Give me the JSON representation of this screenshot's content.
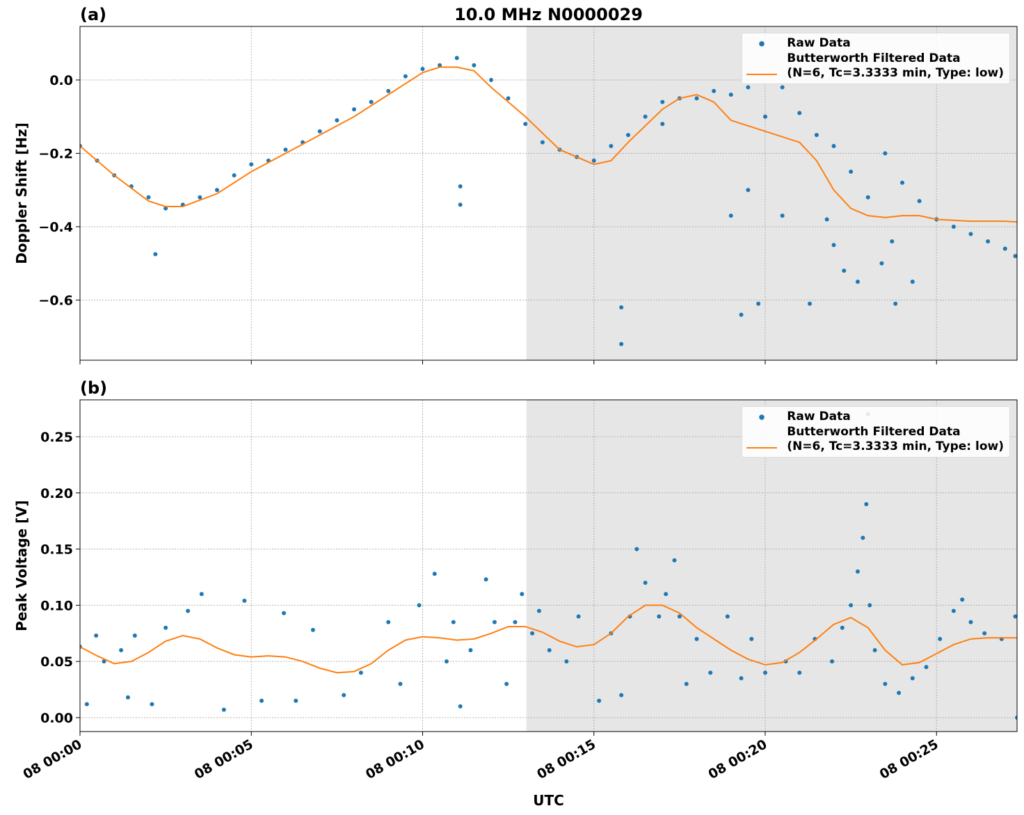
{
  "chart_data": [
    {
      "type": "scatter-line",
      "title": "10.0 MHz N0000029",
      "panel_label": "(a)",
      "ylabel": "Doppler Shift [Hz]",
      "sharex": true,
      "xlim": [
        0,
        27.35
      ],
      "ylim": [
        -0.764,
        0.146
      ],
      "grid": true,
      "shade": [
        13.03,
        27.35
      ],
      "legend": "upper right",
      "yticks": [
        {
          "value": -0.6,
          "label": "−0.6"
        },
        {
          "value": -0.4,
          "label": "−0.4"
        },
        {
          "value": -0.2,
          "label": "−0.2"
        },
        {
          "value": 0,
          "label": "0.0"
        }
      ],
      "series": [
        {
          "name": "Raw Data",
          "color": "#1f77b4",
          "mode": "markers",
          "x": [
            0,
            0.5,
            1,
            1.5,
            2,
            2.5,
            3,
            3.5,
            4,
            4.5,
            5,
            5.5,
            6,
            6.5,
            7,
            7.5,
            8,
            8.5,
            9,
            9.5,
            10,
            10.5,
            11,
            11.5,
            12,
            12.5,
            13,
            13.5,
            14,
            14.5,
            15,
            15.5,
            16,
            16.5,
            17,
            17.5,
            18,
            18.5,
            19,
            19.5,
            20,
            20.5,
            21,
            21.5,
            22,
            22.5,
            23,
            23.5,
            24,
            24.5,
            25,
            25.5,
            26,
            26.5,
            27,
            27.3,
            2.2,
            11.1,
            11.1,
            15.8,
            15.8,
            19.3,
            19.8,
            21.3,
            22.3,
            22.7,
            23.7,
            23.4,
            24.3,
            20.5,
            19.5,
            17,
            19,
            23.8,
            21.8,
            22
          ],
          "values": [
            -0.18,
            -0.22,
            -0.26,
            -0.29,
            -0.32,
            -0.35,
            -0.34,
            -0.32,
            -0.3,
            -0.26,
            -0.23,
            -0.22,
            -0.19,
            -0.17,
            -0.14,
            -0.11,
            -0.08,
            -0.06,
            -0.03,
            0.01,
            0.03,
            0.04,
            0.06,
            0.04,
            0,
            -0.05,
            -0.12,
            -0.17,
            -0.19,
            -0.21,
            -0.22,
            -0.18,
            -0.15,
            -0.1,
            -0.06,
            -0.05,
            -0.05,
            -0.03,
            -0.04,
            -0.02,
            -0.1,
            -0.02,
            -0.09,
            -0.15,
            -0.18,
            -0.25,
            -0.32,
            -0.2,
            -0.28,
            -0.33,
            -0.38,
            -0.4,
            -0.42,
            -0.44,
            -0.46,
            -0.48,
            -0.475,
            -0.34,
            -0.29,
            -0.72,
            -0.62,
            -0.64,
            -0.61,
            -0.61,
            -0.52,
            -0.55,
            -0.44,
            -0.5,
            -0.55,
            -0.37,
            -0.3,
            -0.12,
            -0.37,
            -0.61,
            -0.38,
            -0.45
          ]
        },
        {
          "name": "Butterworth Filtered Data\n(N=6, Tc=3.3333 min, Type: low)",
          "color": "#ff7f0e",
          "mode": "line",
          "x": [
            0,
            1,
            2,
            2.5,
            3,
            4,
            5,
            6,
            7,
            8,
            9,
            10,
            10.5,
            11,
            11.5,
            12,
            13,
            14,
            15,
            15.5,
            16,
            17,
            17.5,
            18,
            18.5,
            19,
            20,
            21,
            21.5,
            22,
            22.5,
            23,
            23.5,
            24,
            24.5,
            25,
            26,
            27,
            27.35
          ],
          "values": [
            -0.18,
            -0.26,
            -0.33,
            -0.345,
            -0.345,
            -0.31,
            -0.25,
            -0.2,
            -0.15,
            -0.1,
            -0.04,
            0.02,
            0.035,
            0.035,
            0.025,
            -0.02,
            -0.1,
            -0.19,
            -0.23,
            -0.22,
            -0.17,
            -0.08,
            -0.05,
            -0.04,
            -0.06,
            -0.11,
            -0.14,
            -0.17,
            -0.22,
            -0.3,
            -0.35,
            -0.37,
            -0.375,
            -0.37,
            -0.37,
            -0.38,
            -0.385,
            -0.385,
            -0.387
          ]
        }
      ]
    },
    {
      "type": "scatter-line",
      "panel_label": "(b)",
      "ylabel": "Peak Voltage [V]",
      "xlabel": "UTC",
      "xlim": [
        0,
        27.35
      ],
      "ylim": [
        -0.0124,
        0.2828
      ],
      "grid": true,
      "shade": [
        13.03,
        27.35
      ],
      "legend": "upper right",
      "xticks": [
        {
          "value": 0,
          "label": "08 00:00"
        },
        {
          "value": 5,
          "label": "08 00:05"
        },
        {
          "value": 10,
          "label": "08 00:10"
        },
        {
          "value": 15,
          "label": "08 00:15"
        },
        {
          "value": 20,
          "label": "08 00:20"
        },
        {
          "value": 25,
          "label": "08 00:25"
        }
      ],
      "yticks": [
        {
          "value": 0,
          "label": "0.00"
        },
        {
          "value": 0.05,
          "label": "0.05"
        },
        {
          "value": 0.1,
          "label": "0.10"
        },
        {
          "value": 0.15,
          "label": "0.15"
        },
        {
          "value": 0.2,
          "label": "0.20"
        },
        {
          "value": 0.25,
          "label": "0.25"
        }
      ],
      "series": [
        {
          "name": "Raw Data",
          "color": "#1f77b4",
          "mode": "markers",
          "x": [
            0,
            0.2,
            0.47,
            0.7,
            1.2,
            1.4,
            1.6,
            2.1,
            2.5,
            3.15,
            3.55,
            4.2,
            4.8,
            5.3,
            5.95,
            6.3,
            6.8,
            7.7,
            8.2,
            9,
            9.35,
            9.9,
            10.35,
            10.7,
            10.9,
            11.1,
            11.4,
            11.85,
            12.1,
            12.45,
            12.7,
            12.9,
            13.2,
            13.4,
            13.7,
            14.2,
            14.55,
            15.15,
            15.5,
            15.8,
            16.05,
            16.25,
            16.5,
            16.9,
            17.1,
            17.35,
            17.5,
            17.7,
            18,
            18.4,
            18.9,
            19.3,
            19.6,
            20,
            20.6,
            21,
            21.45,
            21.95,
            22.25,
            22.5,
            22.7,
            22.85,
            22.95,
            23,
            23.05,
            23.2,
            23.5,
            23.9,
            24.3,
            24.7,
            25.1,
            25.5,
            25.75,
            26,
            26.4,
            26.9,
            27.3,
            27.35
          ],
          "values": [
            0.063,
            0.012,
            0.073,
            0.05,
            0.06,
            0.018,
            0.073,
            0.012,
            0.08,
            0.095,
            0.11,
            0.007,
            0.104,
            0.015,
            0.093,
            0.015,
            0.078,
            0.02,
            0.04,
            0.085,
            0.03,
            0.1,
            0.128,
            0.05,
            0.085,
            0.01,
            0.06,
            0.123,
            0.085,
            0.03,
            0.085,
            0.11,
            0.075,
            0.095,
            0.06,
            0.05,
            0.09,
            0.015,
            0.075,
            0.02,
            0.09,
            0.15,
            0.12,
            0.09,
            0.11,
            0.14,
            0.09,
            0.03,
            0.07,
            0.04,
            0.09,
            0.035,
            0.07,
            0.04,
            0.05,
            0.04,
            0.07,
            0.05,
            0.08,
            0.1,
            0.13,
            0.16,
            0.19,
            0.27,
            0.1,
            0.06,
            0.03,
            0.022,
            0.035,
            0.045,
            0.07,
            0.095,
            0.105,
            0.085,
            0.075,
            0.07,
            0.09,
            0
          ]
        },
        {
          "name": "Butterworth Filtered Data\n(N=6, Tc=3.3333 min, Type: low)",
          "color": "#ff7f0e",
          "mode": "line",
          "x": [
            0,
            0.5,
            1,
            1.5,
            2,
            2.5,
            3,
            3.5,
            4,
            4.5,
            5,
            5.5,
            6,
            6.5,
            7,
            7.5,
            8,
            8.5,
            9,
            9.5,
            10,
            10.5,
            11,
            11.5,
            12,
            12.5,
            13,
            13.5,
            14,
            14.5,
            15,
            15.5,
            16,
            16.5,
            17,
            17.5,
            18,
            18.5,
            19,
            19.5,
            20,
            20.5,
            21,
            21.5,
            22,
            22.5,
            23,
            23.5,
            24,
            24.5,
            25,
            25.5,
            26,
            26.5,
            27,
            27.35
          ],
          "values": [
            0.063,
            0.055,
            0.048,
            0.05,
            0.058,
            0.068,
            0.073,
            0.07,
            0.062,
            0.056,
            0.054,
            0.055,
            0.054,
            0.05,
            0.044,
            0.04,
            0.041,
            0.048,
            0.06,
            0.069,
            0.072,
            0.071,
            0.069,
            0.07,
            0.075,
            0.081,
            0.081,
            0.076,
            0.068,
            0.063,
            0.065,
            0.075,
            0.09,
            0.1,
            0.1,
            0.093,
            0.08,
            0.07,
            0.06,
            0.052,
            0.047,
            0.049,
            0.058,
            0.07,
            0.083,
            0.089,
            0.08,
            0.06,
            0.047,
            0.049,
            0.057,
            0.065,
            0.07,
            0.071,
            0.071,
            0.071
          ]
        }
      ]
    }
  ]
}
